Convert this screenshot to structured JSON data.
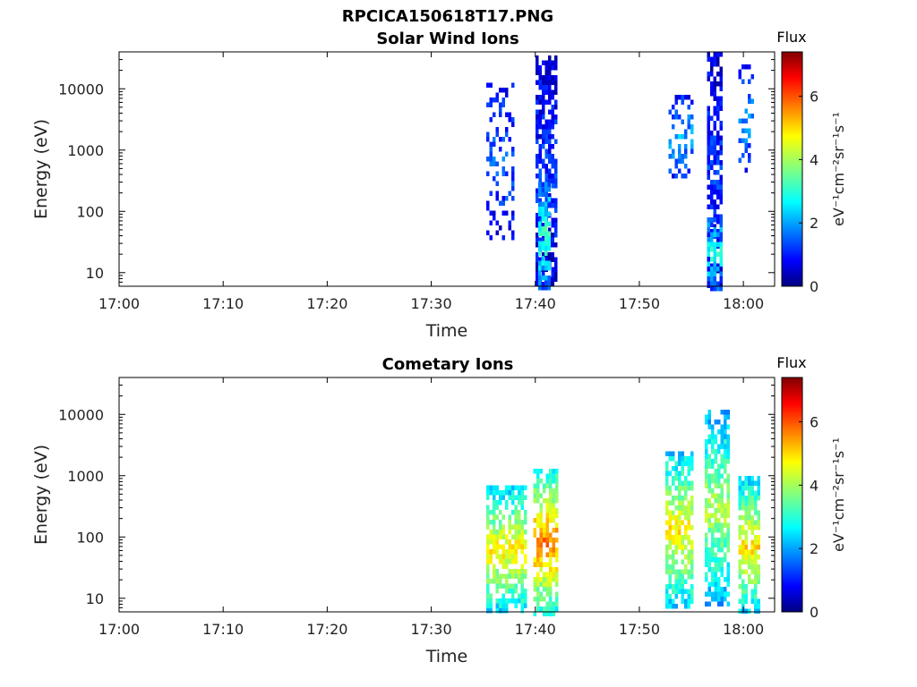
{
  "figure": {
    "title": "RPCICA150618T17.PNG"
  },
  "colorbar": {
    "label": "Flux",
    "ylabel": "eV⁻¹cm⁻²sr⁻¹s⁻¹",
    "ticks": [
      "0",
      "2",
      "4",
      "6"
    ],
    "range": [
      0,
      7.4
    ],
    "colormap": "jet"
  },
  "chart_data": [
    {
      "type": "heatmap",
      "title": "Solar Wind Ions",
      "xlabel": "Time",
      "ylabel": "Energy (eV)",
      "y_scale": "log",
      "x_ticks": [
        "17:00",
        "17:10",
        "17:20",
        "17:30",
        "17:40",
        "17:50",
        "18:00"
      ],
      "y_ticks": [
        "10",
        "100",
        "1000",
        "10000"
      ],
      "xlim": [
        "17:00",
        "18:03"
      ],
      "ylim": [
        6,
        40000
      ],
      "clusters": [
        {
          "time_start": "17:35.3",
          "time_end": "17:38.0",
          "energy_min": 40,
          "energy_max": 15000,
          "flux_level": 1.3,
          "note": "sparse"
        },
        {
          "time_start": "17:40.0",
          "time_end": "17:42.0",
          "energy_min": 6,
          "energy_max": 35000,
          "flux_level": 1.0,
          "note": "dense"
        },
        {
          "time_start": "17:40.3",
          "time_end": "17:41.5",
          "energy_min": 6,
          "energy_max": 300,
          "flux_level": 2.8,
          "note": "low-energy peak"
        },
        {
          "time_start": "17:52.8",
          "time_end": "17:55.0",
          "energy_min": 400,
          "energy_max": 8000,
          "flux_level": 1.8,
          "note": "sparse"
        },
        {
          "time_start": "17:56.5",
          "time_end": "17:58.0",
          "energy_min": 6,
          "energy_max": 40000,
          "flux_level": 1.0,
          "note": "dense"
        },
        {
          "time_start": "17:56.5",
          "time_end": "17:58.0",
          "energy_min": 6,
          "energy_max": 80,
          "flux_level": 2.6,
          "note": "low-energy peak"
        },
        {
          "time_start": "17:59.5",
          "time_end": "18:01.0",
          "energy_min": 500,
          "energy_max": 25000,
          "flux_level": 1.7,
          "note": "sparse"
        }
      ]
    },
    {
      "type": "heatmap",
      "title": "Cometary Ions",
      "xlabel": "Time",
      "ylabel": "Energy (eV)",
      "y_scale": "log",
      "x_ticks": [
        "17:00",
        "17:10",
        "17:20",
        "17:30",
        "17:40",
        "17:50",
        "18:00"
      ],
      "y_ticks": [
        "10",
        "100",
        "1000",
        "10000"
      ],
      "xlim": [
        "17:00",
        "18:03"
      ],
      "ylim": [
        6,
        40000
      ],
      "clusters": [
        {
          "time_start": "17:35.3",
          "time_end": "17:39.0",
          "energy_min": 6,
          "energy_max": 700,
          "flux_level": 4.2,
          "note": "peak ~40 eV"
        },
        {
          "time_start": "17:39.8",
          "time_end": "17:42.0",
          "energy_min": 6,
          "energy_max": 1300,
          "flux_level": 5.0,
          "note": "peak ~40 eV"
        },
        {
          "time_start": "17:52.5",
          "time_end": "17:55.0",
          "energy_min": 8,
          "energy_max": 2500,
          "flux_level": 4.2,
          "note": "peak ~40 eV"
        },
        {
          "time_start": "17:56.3",
          "time_end": "17:58.5",
          "energy_min": 8,
          "energy_max": 12000,
          "flux_level": 3.6,
          "note": "peak ~60 eV"
        },
        {
          "time_start": "17:59.5",
          "time_end": "18:01.5",
          "energy_min": 6,
          "energy_max": 1000,
          "flux_level": 4.3,
          "note": "peak ~40 eV"
        }
      ]
    }
  ]
}
